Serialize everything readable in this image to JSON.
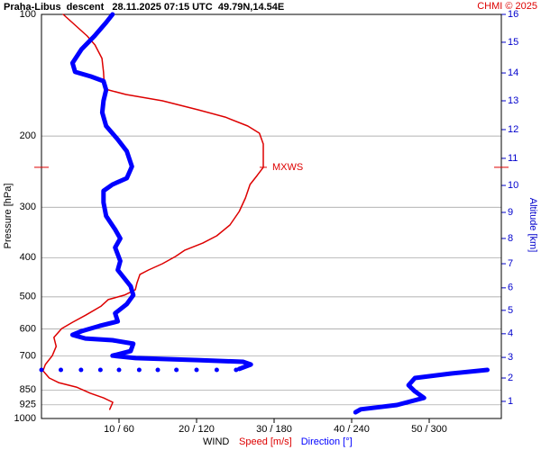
{
  "chart_data": {
    "type": "wind_profile",
    "title": "Praha-Libus  descent   28.11.2025 07:15 UTC  49.79N,14.54E",
    "credit": "CHMI © 2025",
    "y_label": "Pressure [hPa]",
    "y2_label": "Altitude [km]",
    "x_label": "WIND",
    "y_log": true,
    "grid": true,
    "ylim": [
      1000,
      100
    ],
    "yticks": [
      100,
      200,
      300,
      400,
      500,
      600,
      700,
      850,
      925,
      1000
    ],
    "xlim": [
      0,
      59.3
    ],
    "x2lim": [
      0,
      355.8
    ],
    "xticks": [
      {
        "value": 10,
        "label": "10 / 60"
      },
      {
        "value": 20,
        "label": "20 / 120"
      },
      {
        "value": 30,
        "label": "30 / 180"
      },
      {
        "value": 40,
        "label": "40 / 240"
      },
      {
        "value": 50,
        "label": "50 / 300"
      }
    ],
    "altitude_ticks": [
      {
        "km": 16,
        "pressure": 100
      },
      {
        "km": 15,
        "pressure": 117.2
      },
      {
        "km": 14,
        "pressure": 139.6
      },
      {
        "km": 13,
        "pressure": 163.6
      },
      {
        "km": 12,
        "pressure": 192.8
      },
      {
        "km": 11,
        "pressure": 227.1
      },
      {
        "km": 10,
        "pressure": 265
      },
      {
        "km": 9,
        "pressure": 309
      },
      {
        "km": 8,
        "pressure": 358.5
      },
      {
        "km": 7,
        "pressure": 414
      },
      {
        "km": 6,
        "pressure": 475
      },
      {
        "km": 5,
        "pressure": 540
      },
      {
        "km": 4,
        "pressure": 617
      },
      {
        "km": 3,
        "pressure": 706
      },
      {
        "km": 2,
        "pressure": 794
      },
      {
        "km": 1,
        "pressure": 907
      }
    ],
    "altitude_color": "#0000cc",
    "max_wind": {
      "label": "MXWS",
      "pressure": 239,
      "speed": 28.6,
      "color": "#dd0000"
    },
    "level_dots": {
      "pressure": 758,
      "color": "#0000ff",
      "x": [
        0,
        2.5,
        5.1,
        7.6,
        10.0,
        12.6,
        15.0,
        17.4,
        20.0,
        22.6,
        25.1
      ]
    },
    "series": [
      {
        "name": "Speed [m/s]",
        "color": "#dd0000",
        "pressure": [
          100,
          113.1,
          119,
          128.5,
          138.8,
          150,
          153.8,
          157.8,
          163.6,
          172.2,
          179.5,
          188.9,
          196.8,
          209.3,
          226,
          239,
          250.5,
          263.6,
          284.7,
          307.4,
          332,
          353,
          368,
          383,
          397,
          414,
          429,
          440,
          463,
          480,
          495,
          508,
          527,
          555,
          578,
          599,
          630,
          663,
          699,
          735,
          762,
          794,
          815,
          836,
          866,
          889,
          912,
          949
        ],
        "values": [
          2.8,
          5.9,
          6.9,
          7.8,
          8.0,
          8.1,
          8.6,
          10.9,
          15.6,
          20.2,
          23.7,
          26.6,
          28.1,
          28.6,
          28.6,
          28.6,
          27.8,
          26.9,
          26.3,
          25.5,
          24.3,
          22.6,
          20.8,
          18.5,
          17.3,
          15.6,
          13.8,
          12.7,
          12.3,
          12.1,
          10.7,
          8.6,
          7.7,
          5.7,
          4.0,
          2.6,
          1.6,
          1.9,
          1.4,
          0.5,
          0.2,
          1.0,
          2.2,
          4.5,
          6.3,
          8.0,
          9.2,
          8.8
        ]
      },
      {
        "name": "Direction [°]",
        "color": "#0000ff",
        "axis": "x2",
        "pressure": [
          100,
          104.7,
          113.1,
          122,
          131.9,
          138.8,
          142.4,
          146.2,
          153.8,
          163.6,
          174.9,
          188.9,
          204,
          218,
          237.9,
          254.3,
          263.6,
          273.3,
          292,
          315.4,
          340.7,
          358.5,
          377.5,
          407.6,
          429,
          470.6,
          495,
          521,
          549,
          575,
          590,
          608,
          621,
          634,
          640,
          653,
          681,
          699,
          709,
          717,
          724,
          735,
          754,
          null,
          758,
          774,
          794,
          827,
          857,
          889,
          926,
          949,
          965
        ],
        "values": [
          55,
          50,
          41,
          31,
          24,
          26,
          38,
          48,
          50,
          48,
          47,
          50,
          59,
          66,
          70,
          66,
          55,
          48,
          48,
          50,
          57,
          61,
          57,
          61,
          59,
          69,
          71,
          66,
          57,
          59,
          45,
          31,
          24,
          34,
          55,
          71,
          69,
          55,
          73,
          121,
          156,
          162,
          153,
          null,
          345,
          317,
          289,
          284,
          289,
          296,
          275,
          247,
          243
        ]
      }
    ]
  }
}
